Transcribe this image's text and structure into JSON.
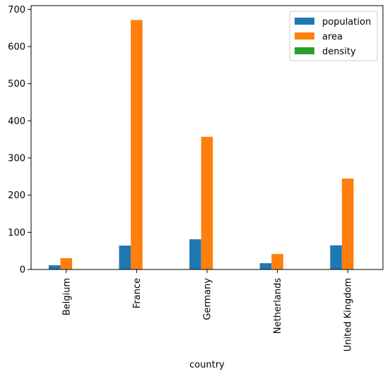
{
  "chart_data": {
    "type": "bar",
    "xlabel": "country",
    "ylabel": "",
    "ylim": [
      0,
      710
    ],
    "yticks": [
      0,
      100,
      200,
      300,
      400,
      500,
      600,
      700
    ],
    "categories": [
      "Belgium",
      "France",
      "Germany",
      "Netherlands",
      "United Kingdom"
    ],
    "series": [
      {
        "name": "population",
        "color": "#1f77b4",
        "values": [
          11.3,
          64.3,
          81.3,
          16.9,
          64.9
        ]
      },
      {
        "name": "area",
        "color": "#ff7f0e",
        "values": [
          30.5,
          671.3,
          357.1,
          41.5,
          244.8
        ]
      },
      {
        "name": "density",
        "color": "#2ca02c",
        "values": [
          0.37,
          0.1,
          0.23,
          0.41,
          0.27
        ]
      }
    ],
    "legend": "top-right",
    "grid": false
  }
}
